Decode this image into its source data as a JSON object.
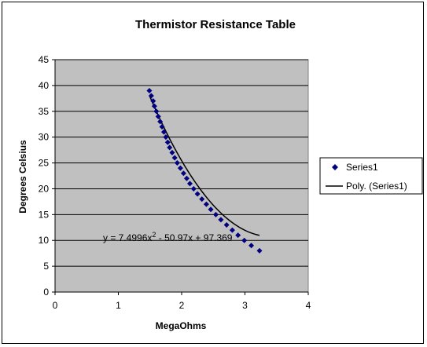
{
  "chart_data": {
    "type": "scatter",
    "title": "Thermistor Resistance Table",
    "xlabel": "MegaOhms",
    "ylabel": "Degrees Celsius",
    "xlim": [
      0,
      4
    ],
    "ylim": [
      0,
      45
    ],
    "x_ticks": [
      "0",
      "1",
      "2",
      "3",
      "4"
    ],
    "y_ticks": [
      "0",
      "5",
      "10",
      "15",
      "20",
      "25",
      "30",
      "35",
      "40",
      "45"
    ],
    "grid": "horizontal",
    "legend_position": "right",
    "plot_background": "#c0c0c0",
    "marker_color": "#000080",
    "trendline_color": "#000000",
    "series": [
      {
        "name": "Series1",
        "marker": "diamond",
        "x": [
          1.49,
          1.52,
          1.55,
          1.57,
          1.6,
          1.63,
          1.66,
          1.69,
          1.72,
          1.75,
          1.78,
          1.81,
          1.85,
          1.89,
          1.93,
          1.98,
          2.03,
          2.08,
          2.13,
          2.19,
          2.25,
          2.32,
          2.39,
          2.46,
          2.54,
          2.62,
          2.71,
          2.8,
          2.89,
          2.99,
          3.1,
          3.23
        ],
        "y": [
          39,
          38,
          37,
          36,
          35,
          34,
          33,
          32,
          31,
          30,
          29,
          28,
          27,
          26,
          25,
          24,
          23,
          22,
          21,
          20,
          19,
          18,
          17,
          16,
          15,
          14,
          13,
          12,
          11,
          10,
          9,
          8
        ]
      }
    ],
    "trendline": {
      "name": "Poly. (Series1)",
      "type": "polynomial",
      "coefficients": [
        7.4996,
        -50.97,
        97.369
      ],
      "x_range": [
        1.49,
        3.23
      ],
      "equation_prefix": "y = 7.4996x",
      "equation_sup": "2",
      "equation_suffix": " - 50.97x + 97.369"
    }
  }
}
